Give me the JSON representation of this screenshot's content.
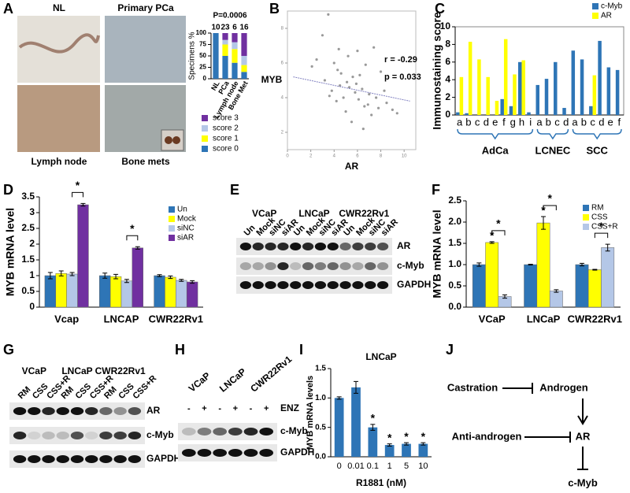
{
  "panel_letters": [
    "A",
    "B",
    "C",
    "D",
    "E",
    "F",
    "G",
    "H",
    "I",
    "J"
  ],
  "images_A": {
    "labels": [
      "NL",
      "Primary PCa",
      "Lymph  node",
      "Bone mets"
    ]
  },
  "chart_data": [
    {
      "type": "stacked_bar",
      "title": "P=0.0006",
      "ylabel": "Specimens %",
      "categories": [
        "NL",
        "PCa",
        "Lymph node",
        "Bone Met"
      ],
      "counts": [
        10,
        23,
        6,
        16
      ],
      "ylim": [
        0,
        100
      ],
      "yticks": [
        0,
        25,
        50,
        75,
        100
      ],
      "series": [
        {
          "name": "score 0",
          "color": "#2e75b6",
          "values": [
            100,
            50,
            35,
            15
          ]
        },
        {
          "name": "score 1",
          "color": "#ffff00",
          "values": [
            0,
            25,
            30,
            15
          ]
        },
        {
          "name": "score 2",
          "color": "#b4c7e7",
          "values": [
            0,
            10,
            15,
            20
          ]
        },
        {
          "name": "score 3",
          "color": "#7030a0",
          "values": [
            0,
            15,
            20,
            50
          ]
        }
      ]
    },
    {
      "type": "scatter",
      "xlabel": "AR",
      "ylabel": "MYB",
      "annotations": [
        "r = -0.29",
        "p = 0.033"
      ],
      "xlim": [
        0,
        11
      ],
      "ylim": [
        1,
        9
      ],
      "xticks": [
        0,
        2,
        4,
        6,
        8,
        10
      ],
      "yticks": [
        2,
        4,
        6,
        8
      ],
      "color": "#999999",
      "x": [
        2.1,
        2.5,
        3.0,
        3.2,
        3.5,
        3.8,
        4.0,
        4.2,
        4.3,
        4.5,
        4.6,
        4.8,
        5.0,
        5.1,
        5.2,
        5.3,
        5.5,
        5.6,
        5.8,
        6.0,
        6.1,
        6.2,
        6.4,
        6.5,
        6.7,
        6.9,
        7.0,
        7.2,
        7.4,
        7.6,
        7.8,
        8.0,
        8.3,
        8.5,
        9.0,
        9.4,
        3.6,
        4.4,
        5.9,
        6.6
      ],
      "y": [
        5.8,
        6.2,
        7.6,
        5.0,
        8.8,
        4.4,
        6.0,
        3.8,
        5.6,
        4.7,
        5.4,
        4.0,
        3.2,
        4.9,
        6.4,
        4.6,
        2.6,
        5.2,
        4.3,
        6.7,
        3.9,
        5.3,
        4.5,
        2.2,
        5.9,
        3.6,
        4.2,
        3.0,
        6.9,
        4.0,
        3.4,
        5.5,
        4.4,
        3.7,
        3.3,
        3.1,
        4.1,
        6.8,
        4.8,
        3.5
      ],
      "fit": {
        "color": "#8080c0",
        "x": [
          0.5,
          10.5
        ],
        "y": [
          5.2,
          3.8
        ]
      }
    },
    {
      "type": "bar",
      "ylabel": "Immunostaining score",
      "ylim": [
        0,
        10
      ],
      "yticks": [
        0,
        2,
        4,
        6,
        8,
        10
      ],
      "frame": true,
      "categories": [
        "a",
        "b",
        "c",
        "d",
        "e",
        "f",
        "g",
        "h",
        "i",
        "a",
        "b",
        "c",
        "d",
        "a",
        "b",
        "c",
        "d",
        "e",
        "f"
      ],
      "groups": [
        {
          "name": "AdCa",
          "size": 9
        },
        {
          "name": "LCNEC",
          "size": 4
        },
        {
          "name": "SCC",
          "size": 6
        }
      ],
      "series": [
        {
          "name": "c-Myb",
          "color": "#2e75b6",
          "values": [
            0.3,
            0.2,
            null,
            null,
            null,
            1.8,
            1.0,
            6.0,
            0.3,
            3.4,
            4.1,
            6.0,
            0.8,
            7.3,
            6.3,
            1.0,
            8.4,
            5.4,
            5.1
          ]
        },
        {
          "name": "AR",
          "color": "#ffff00",
          "values": [
            4.3,
            8.3,
            6.3,
            4.3,
            1.6,
            8.6,
            4.6,
            6.2,
            null,
            null,
            null,
            null,
            null,
            null,
            null,
            4.5,
            null,
            null,
            null
          ]
        }
      ]
    },
    {
      "type": "bar",
      "ylabel": "MYB mRNA level",
      "ylim": [
        0,
        3.5
      ],
      "yticks": [
        0,
        0.5,
        1,
        1.5,
        2,
        2.5,
        3,
        3.5
      ],
      "categories": [
        "Vcap",
        "LNCAP",
        "CWR22Rv1"
      ],
      "series": [
        {
          "name": "Un",
          "color": "#2e75b6",
          "values": [
            1.0,
            1.0,
            1.0
          ],
          "errors": [
            0.1,
            0.08,
            0.03
          ]
        },
        {
          "name": "Mock",
          "color": "#ffff00",
          "values": [
            1.07,
            0.97,
            0.95
          ],
          "errors": [
            0.08,
            0.07,
            0.04
          ]
        },
        {
          "name": "siNC",
          "color": "#b4c7e7",
          "values": [
            1.05,
            0.83,
            0.85
          ],
          "errors": [
            0.05,
            0.05,
            0.03
          ]
        },
        {
          "name": "siAR",
          "color": "#7030a0",
          "values": [
            3.25,
            1.88,
            0.8
          ],
          "errors": [
            0.04,
            0.04,
            0.04
          ]
        }
      ],
      "significance": [
        {
          "label": "*",
          "category": 0,
          "series": [
            2,
            3
          ]
        },
        {
          "label": "*",
          "category": 1,
          "series": [
            2,
            3
          ]
        }
      ]
    },
    {
      "type": "bar",
      "ylabel": "MYB mRNA level",
      "ylim": [
        0,
        2.5
      ],
      "yticks": [
        {
          "value": 0,
          "label": "0.0"
        },
        0.5,
        {
          "value": 1,
          "label": "1.0"
        },
        1.5,
        {
          "value": 2,
          "label": "2.0"
        },
        2.5
      ],
      "categories": [
        "VCaP",
        "LNCaP",
        "CWR22Rv1"
      ],
      "series": [
        {
          "name": "RM",
          "color": "#2e75b6",
          "values": [
            1.0,
            1.0,
            1.0
          ],
          "errors": [
            0.04,
            0.01,
            0.03
          ]
        },
        {
          "name": "CSS",
          "color": "#ffff00",
          "values": [
            1.52,
            1.98,
            0.88
          ],
          "errors": [
            0.02,
            0.15,
            0.01
          ]
        },
        {
          "name": "CSS+R",
          "color": "#b4c7e7",
          "values": [
            0.25,
            0.38,
            1.4
          ],
          "errors": [
            0.04,
            0.03,
            0.08
          ]
        }
      ],
      "significance": [
        {
          "label": "*",
          "category": 0,
          "series": [
            1
          ]
        },
        {
          "label": "*",
          "category": 0,
          "series": [
            1,
            2
          ]
        },
        {
          "label": "*",
          "category": 1,
          "series": [
            1
          ]
        },
        {
          "label": "*",
          "category": 1,
          "series": [
            1,
            2
          ]
        },
        {
          "label": "*",
          "category": 2,
          "series": [
            1,
            2
          ]
        }
      ]
    },
    {
      "type": "bar",
      "title": "LNCaP",
      "ylabel": "MYB mRNA levels",
      "xlabel": "R1881 (nM)",
      "color": "#2e75b6",
      "ylim": [
        0,
        1.5
      ],
      "yticks": [
        {
          "value": 0,
          "label": "0.0"
        },
        0.5,
        {
          "value": 1,
          "label": "1.0"
        },
        1.5
      ],
      "categories": [
        "0",
        "0.01",
        "0.1",
        "1",
        "5",
        "10"
      ],
      "values": [
        1.0,
        1.18,
        0.5,
        0.2,
        0.22,
        0.22
      ],
      "errors": [
        0.02,
        0.1,
        0.05,
        0.02,
        0.02,
        0.02
      ],
      "significance": [
        {
          "label": "*",
          "category": 2
        },
        {
          "label": "*",
          "category": 3
        },
        {
          "label": "*",
          "category": 4
        },
        {
          "label": "*",
          "category": 5
        }
      ]
    }
  ],
  "blots": [
    {
      "groups": [
        "VCaP",
        "LNCaP",
        "CWR22Rv1"
      ],
      "lanes": [
        "Un",
        "Mock",
        "siNC",
        "siAR",
        "Un",
        "Mock",
        "siNC",
        "siAR",
        "Un",
        "Mock",
        "siNC",
        "siAR"
      ],
      "rows": [
        "AR",
        "c-Myb",
        "GAPDH"
      ]
    },
    {
      "groups": [
        "VCaP",
        "LNCaP",
        "CWR22Rv1"
      ],
      "lanes": [
        "RM",
        "CSS",
        "CSS+R",
        "RM",
        "CSS",
        "CSS+R",
        "RM",
        "CSS",
        "CSS+R"
      ],
      "rows": [
        "AR",
        "c-Myb",
        "GAPDH"
      ]
    },
    {
      "groups": [
        "VCaP",
        "LNCaP",
        "CWR22Rv1"
      ],
      "lanes": [
        "-",
        "+",
        "-",
        "+",
        "-",
        "+"
      ],
      "treatment": "ENZ",
      "rows": [
        "c-Myb",
        "GAPDH"
      ]
    }
  ],
  "diagram": {
    "nodes": [
      "Castration",
      "Androgen",
      "Anti-androgen",
      "AR",
      "c-Myb"
    ]
  }
}
